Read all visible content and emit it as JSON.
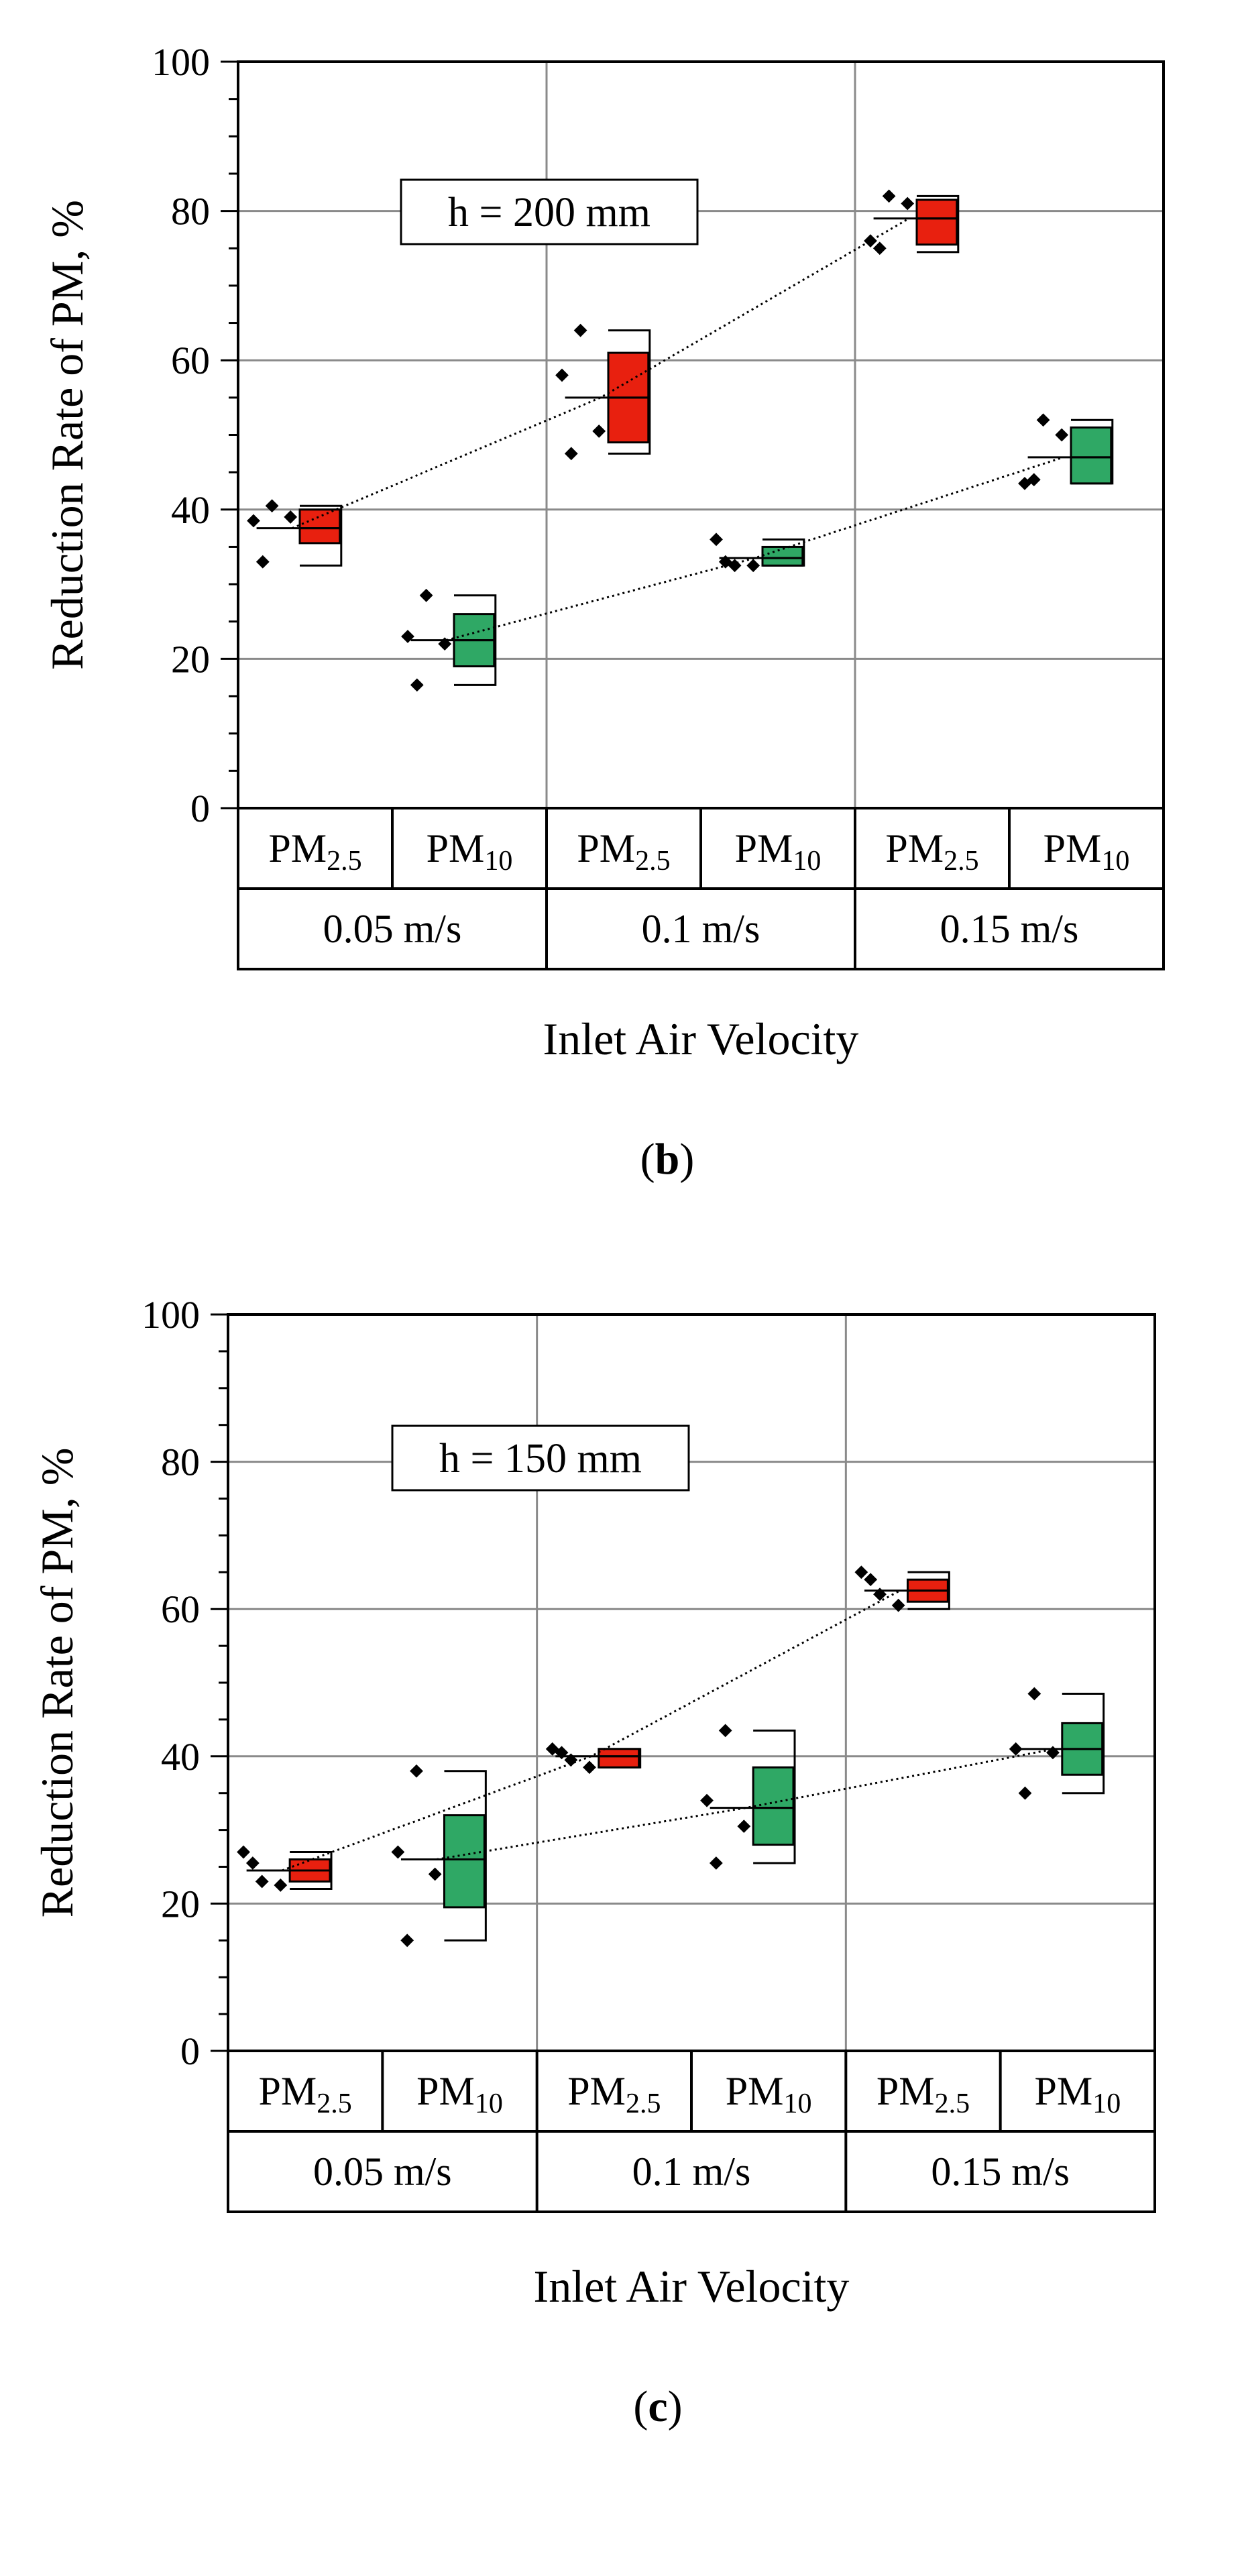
{
  "chart_data": [
    {
      "type": "box",
      "panel_label": "b",
      "annotation": "h = 200 mm",
      "ylabel": "Reduction Rate of PM, %",
      "xlabel": "Inlet Air Velocity",
      "ylim": [
        0,
        100
      ],
      "yticks": [
        "0",
        "20",
        "40",
        "60",
        "80",
        "100"
      ],
      "grid": true,
      "groups": [
        "0.05 m/s",
        "0.1 m/s",
        "0.15 m/s"
      ],
      "series": [
        {
          "name": "PM2.5",
          "label_main": "PM",
          "label_sub": "2.5",
          "color": "#e8200f",
          "boxes": [
            {
              "min": 32.5,
              "q1": 35.5,
              "median": 37.5,
              "q3": 40,
              "max": 40.5,
              "mean": 37.5,
              "points": [
                38.5,
                40.5,
                39,
                33
              ]
            },
            {
              "min": 47.5,
              "q1": 49,
              "median": 55,
              "q3": 61,
              "max": 64,
              "mean": 55,
              "points": [
                58,
                64,
                50.5,
                47.5
              ]
            },
            {
              "min": 74.5,
              "q1": 75.5,
              "median": 79,
              "q3": 81.5,
              "max": 82,
              "mean": 79,
              "points": [
                76,
                82,
                81,
                75
              ]
            }
          ]
        },
        {
          "name": "PM10",
          "label_main": "PM",
          "label_sub": "10",
          "color": "#2fa865",
          "boxes": [
            {
              "min": 16.5,
              "q1": 19,
              "median": 22.5,
              "q3": 26,
              "max": 28.5,
              "mean": 22.5,
              "points": [
                23,
                28.5,
                22,
                16.5
              ]
            },
            {
              "min": 32.5,
              "q1": 32.5,
              "median": 33.5,
              "q3": 35,
              "max": 36,
              "mean": 33.5,
              "points": [
                36,
                32.5,
                32.5,
                33
              ]
            },
            {
              "min": 43.5,
              "q1": 43.5,
              "median": 47,
              "q3": 51,
              "max": 52,
              "mean": 47,
              "points": [
                43.5,
                52,
                50,
                44
              ]
            }
          ]
        }
      ]
    },
    {
      "type": "box",
      "panel_label": "c",
      "annotation": "h = 150 mm",
      "ylabel": "Reduction Rate of PM, %",
      "xlabel": "Inlet Air Velocity",
      "ylim": [
        0,
        100
      ],
      "yticks": [
        "0",
        "20",
        "40",
        "60",
        "80",
        "100"
      ],
      "grid": true,
      "groups": [
        "0.05 m/s",
        "0.1 m/s",
        "0.15 m/s"
      ],
      "series": [
        {
          "name": "PM2.5",
          "label_main": "PM",
          "label_sub": "2.5",
          "color": "#e8200f",
          "boxes": [
            {
              "min": 22,
              "q1": 23,
              "median": 24.5,
              "q3": 26,
              "max": 27,
              "mean": 24.5,
              "points": [
                27,
                23,
                22.5,
                25.5
              ]
            },
            {
              "min": 38.5,
              "q1": 38.5,
              "median": 40,
              "q3": 41,
              "max": 41,
              "mean": 40,
              "points": [
                41,
                39.5,
                38.5,
                40.5
              ]
            },
            {
              "min": 60,
              "q1": 61,
              "median": 62.5,
              "q3": 64,
              "max": 65,
              "mean": 62.5,
              "points": [
                65,
                62,
                60.5,
                64
              ]
            }
          ]
        },
        {
          "name": "PM10",
          "label_main": "PM",
          "label_sub": "10",
          "color": "#2fa865",
          "boxes": [
            {
              "min": 15,
              "q1": 19.5,
              "median": 26,
              "q3": 32,
              "max": 38,
              "mean": 26,
              "points": [
                27,
                38,
                24,
                15
              ]
            },
            {
              "min": 25.5,
              "q1": 28,
              "median": 33,
              "q3": 38.5,
              "max": 43.5,
              "mean": 33,
              "points": [
                34,
                43.5,
                30.5,
                25.5
              ]
            },
            {
              "min": 35,
              "q1": 37.5,
              "median": 41,
              "q3": 44.5,
              "max": 48.5,
              "mean": 41,
              "points": [
                41,
                48.5,
                40.5,
                35
              ]
            }
          ]
        }
      ]
    }
  ]
}
